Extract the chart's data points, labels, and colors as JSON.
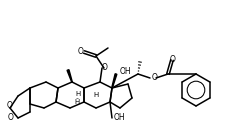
{
  "background_color": "#ffffff",
  "line_color": "#000000",
  "lw": 1.1,
  "figsize": [
    2.38,
    1.35
  ],
  "dpi": 100,
  "xlim": [
    0,
    238
  ],
  "ylim": [
    0,
    135
  ]
}
